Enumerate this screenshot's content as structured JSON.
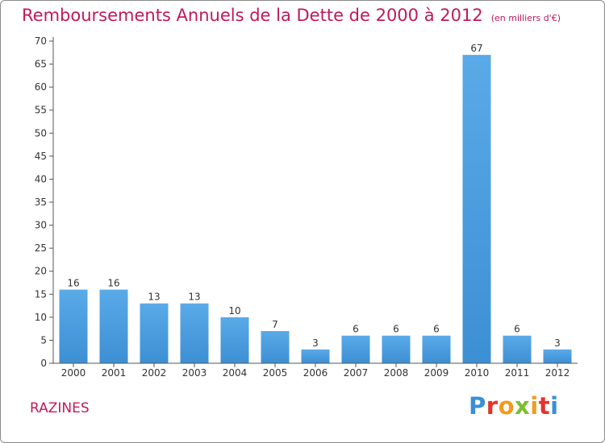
{
  "header": {
    "title": "Remboursements Annuels de la Dette de 2000 à 2012",
    "unit": "(en milliers d'€)"
  },
  "footer": {
    "commune": "RAZINES",
    "logo_text": "Proxiti",
    "logo_colors": [
      "#3a8fd6",
      "#e5322d",
      "#f39a1e",
      "#7cbf2e",
      "#f39a1e",
      "#e5322d",
      "#3a8fd6"
    ]
  },
  "chart_data": {
    "type": "bar",
    "title": "Remboursements Annuels de la Dette de 2000 à 2012",
    "subtitle": "(en milliers d'€)",
    "xlabel": "",
    "ylabel": "",
    "categories": [
      "2000",
      "2001",
      "2002",
      "2003",
      "2004",
      "2005",
      "2006",
      "2007",
      "2008",
      "2009",
      "2010",
      "2011",
      "2012"
    ],
    "values": [
      16,
      16,
      13,
      13,
      10,
      7,
      3,
      6,
      6,
      6,
      67,
      6,
      3
    ],
    "data_labels": [
      "16",
      "16",
      "13",
      "13",
      "10",
      "7",
      "3",
      "6",
      "6",
      "6",
      "67",
      "6",
      "3"
    ],
    "ylim": [
      0,
      70
    ],
    "yticks": [
      0,
      5,
      10,
      15,
      20,
      25,
      30,
      35,
      40,
      45,
      50,
      55,
      60,
      65,
      70
    ],
    "grid": false,
    "bar_color": "#3d8fd4",
    "bar_color_light": "#5aaae8"
  }
}
